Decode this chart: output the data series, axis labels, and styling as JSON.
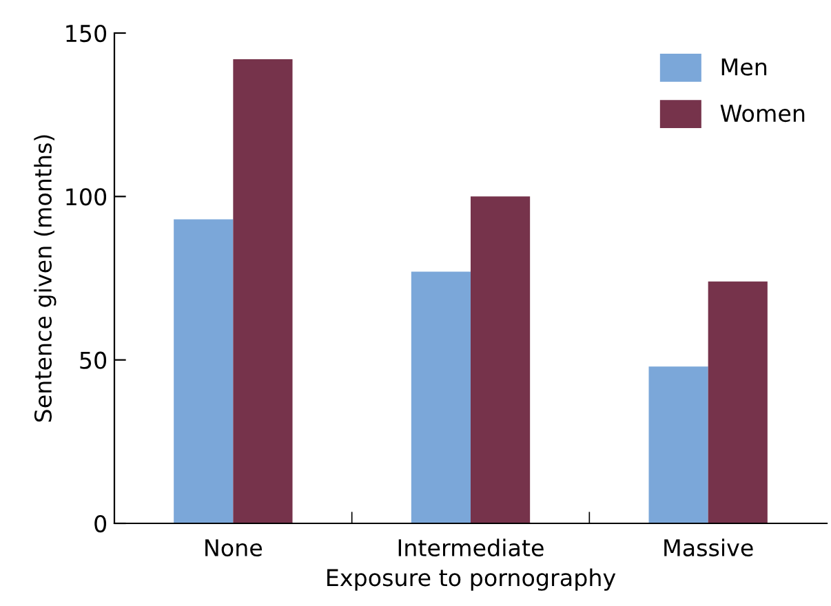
{
  "chart_data": {
    "type": "bar",
    "xlabel": "Exposure to pornography",
    "ylabel": "Sentence given (months)",
    "categories": [
      "None",
      "Intermediate",
      "Massive"
    ],
    "series": [
      {
        "name": "Men",
        "color": "#7ba7d9",
        "values": [
          93,
          77,
          48
        ]
      },
      {
        "name": "Women",
        "color": "#76334b",
        "values": [
          142,
          100,
          74
        ]
      }
    ],
    "ylim": [
      0,
      150
    ],
    "yticks": [
      0,
      50,
      100,
      150
    ],
    "grid": false,
    "legend": "top right"
  }
}
